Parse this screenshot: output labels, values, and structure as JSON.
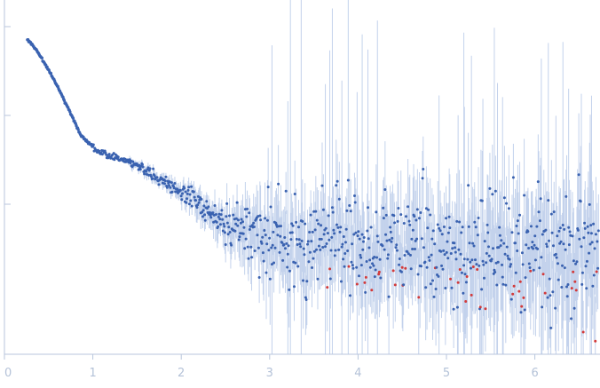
{
  "chart_data": {
    "type": "scatter",
    "title": "",
    "xlabel": "",
    "ylabel": "",
    "xlim": [
      0,
      6.72
    ],
    "x_ticks": [
      {
        "value": 0,
        "label": "0"
      },
      {
        "value": 1,
        "label": "1"
      },
      {
        "value": 2,
        "label": "2"
      },
      {
        "value": 3,
        "label": "3"
      },
      {
        "value": 4,
        "label": "4"
      },
      {
        "value": 5,
        "label": "5"
      },
      {
        "value": 6,
        "label": "6"
      }
    ],
    "y_scale": "log",
    "y_ticks_labeled": false,
    "grid": false,
    "legend": "none",
    "series": [
      {
        "x_start": 0.26,
        "x_end": 6.72,
        "n_points": 900,
        "shape": "smooth decay to a shoulder near x=1, slow decline to x=2.5, then a noisy plateau with growing error bars",
        "color": "#3a62b0",
        "error_color": "#c3d2ec",
        "negative_point_color": "#d23a3a"
      }
    ]
  }
}
